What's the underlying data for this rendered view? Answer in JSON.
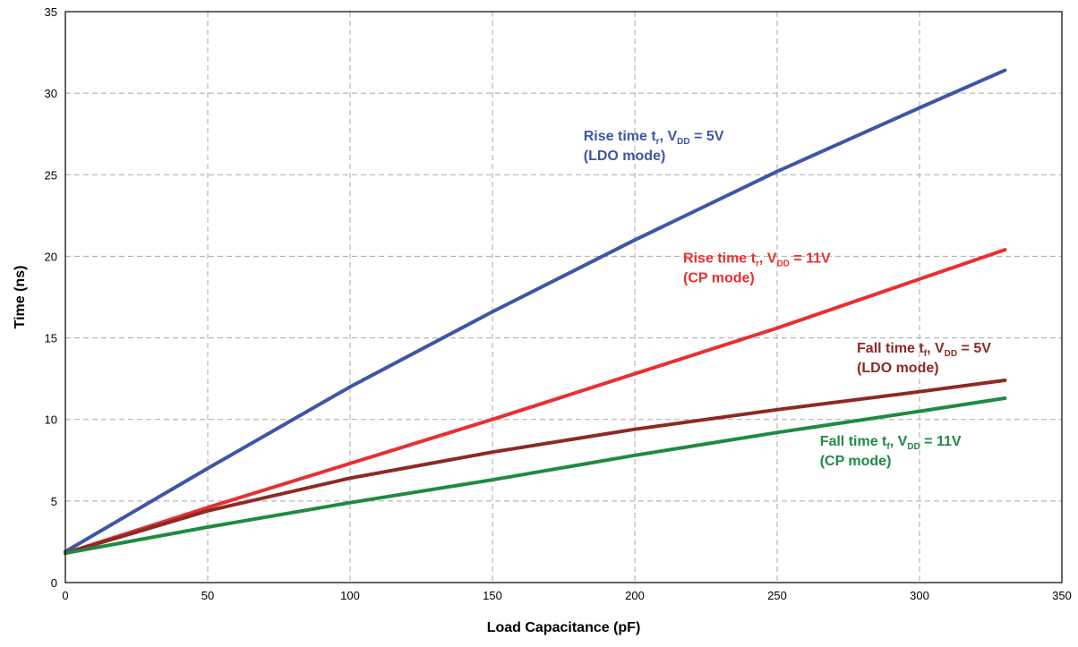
{
  "chart_data": {
    "type": "line",
    "title": "",
    "xlabel": "Load Capacitance (pF)",
    "ylabel": "Time (ns)",
    "xlim": [
      0,
      350
    ],
    "ylim": [
      0,
      35
    ],
    "xticks": [
      0,
      50,
      100,
      150,
      200,
      250,
      300,
      350
    ],
    "yticks": [
      0,
      5,
      10,
      15,
      20,
      25,
      30,
      35
    ],
    "grid": true,
    "legend": "none",
    "series": [
      {
        "name": "",
        "color": "#3e56a6",
        "x": [
          0,
          50,
          100,
          150,
          200,
          250,
          300,
          330
        ],
        "y": [
          1.9,
          7.0,
          12.0,
          16.6,
          21.0,
          25.2,
          29.1,
          31.4
        ],
        "annotation": {
          "x": 182,
          "y": 27.1,
          "lines": [
            [
              {
                "t": "Rise time t"
              },
              {
                "t": "r",
                "sub": true
              },
              {
                "t": ", V"
              },
              {
                "t": "DD",
                "sub": true
              },
              {
                "t": " = 5V"
              }
            ],
            [
              {
                "t": "(LDO mode)"
              }
            ]
          ]
        }
      },
      {
        "name": "",
        "color": "#e8302f",
        "x": [
          0,
          50,
          100,
          150,
          200,
          250,
          300,
          330
        ],
        "y": [
          1.8,
          4.6,
          7.3,
          10.0,
          12.8,
          15.6,
          18.6,
          20.4
        ],
        "annotation": {
          "x": 217,
          "y": 19.6,
          "lines": [
            [
              {
                "t": "Rise time t"
              },
              {
                "t": "r",
                "sub": true
              },
              {
                "t": ", V"
              },
              {
                "t": "DD",
                "sub": true
              },
              {
                "t": " = 11V"
              }
            ],
            [
              {
                "t": "(CP mode)"
              }
            ]
          ]
        }
      },
      {
        "name": "",
        "color": "#8c2a24",
        "x": [
          0,
          50,
          100,
          150,
          200,
          250,
          300,
          330
        ],
        "y": [
          1.8,
          4.4,
          6.4,
          8.0,
          9.4,
          10.6,
          11.7,
          12.4
        ],
        "annotation": {
          "x": 278,
          "y": 14.1,
          "lines": [
            [
              {
                "t": "Fall time t"
              },
              {
                "t": "f",
                "sub": true
              },
              {
                "t": ", V"
              },
              {
                "t": "DD",
                "sub": true
              },
              {
                "t": " = 5V"
              }
            ],
            [
              {
                "t": "(LDO mode)"
              }
            ]
          ]
        }
      },
      {
        "name": "",
        "color": "#1f8a44",
        "x": [
          0,
          50,
          100,
          150,
          200,
          250,
          300,
          330
        ],
        "y": [
          1.8,
          3.4,
          4.9,
          6.3,
          7.8,
          9.2,
          10.5,
          11.3
        ],
        "annotation": {
          "x": 265,
          "y": 8.4,
          "lines": [
            [
              {
                "t": "Fall time t"
              },
              {
                "t": "f",
                "sub": true
              },
              {
                "t": ", V"
              },
              {
                "t": "DD",
                "sub": true
              },
              {
                "t": " = 11V"
              }
            ],
            [
              {
                "t": "(CP mode)"
              }
            ]
          ]
        }
      }
    ]
  }
}
